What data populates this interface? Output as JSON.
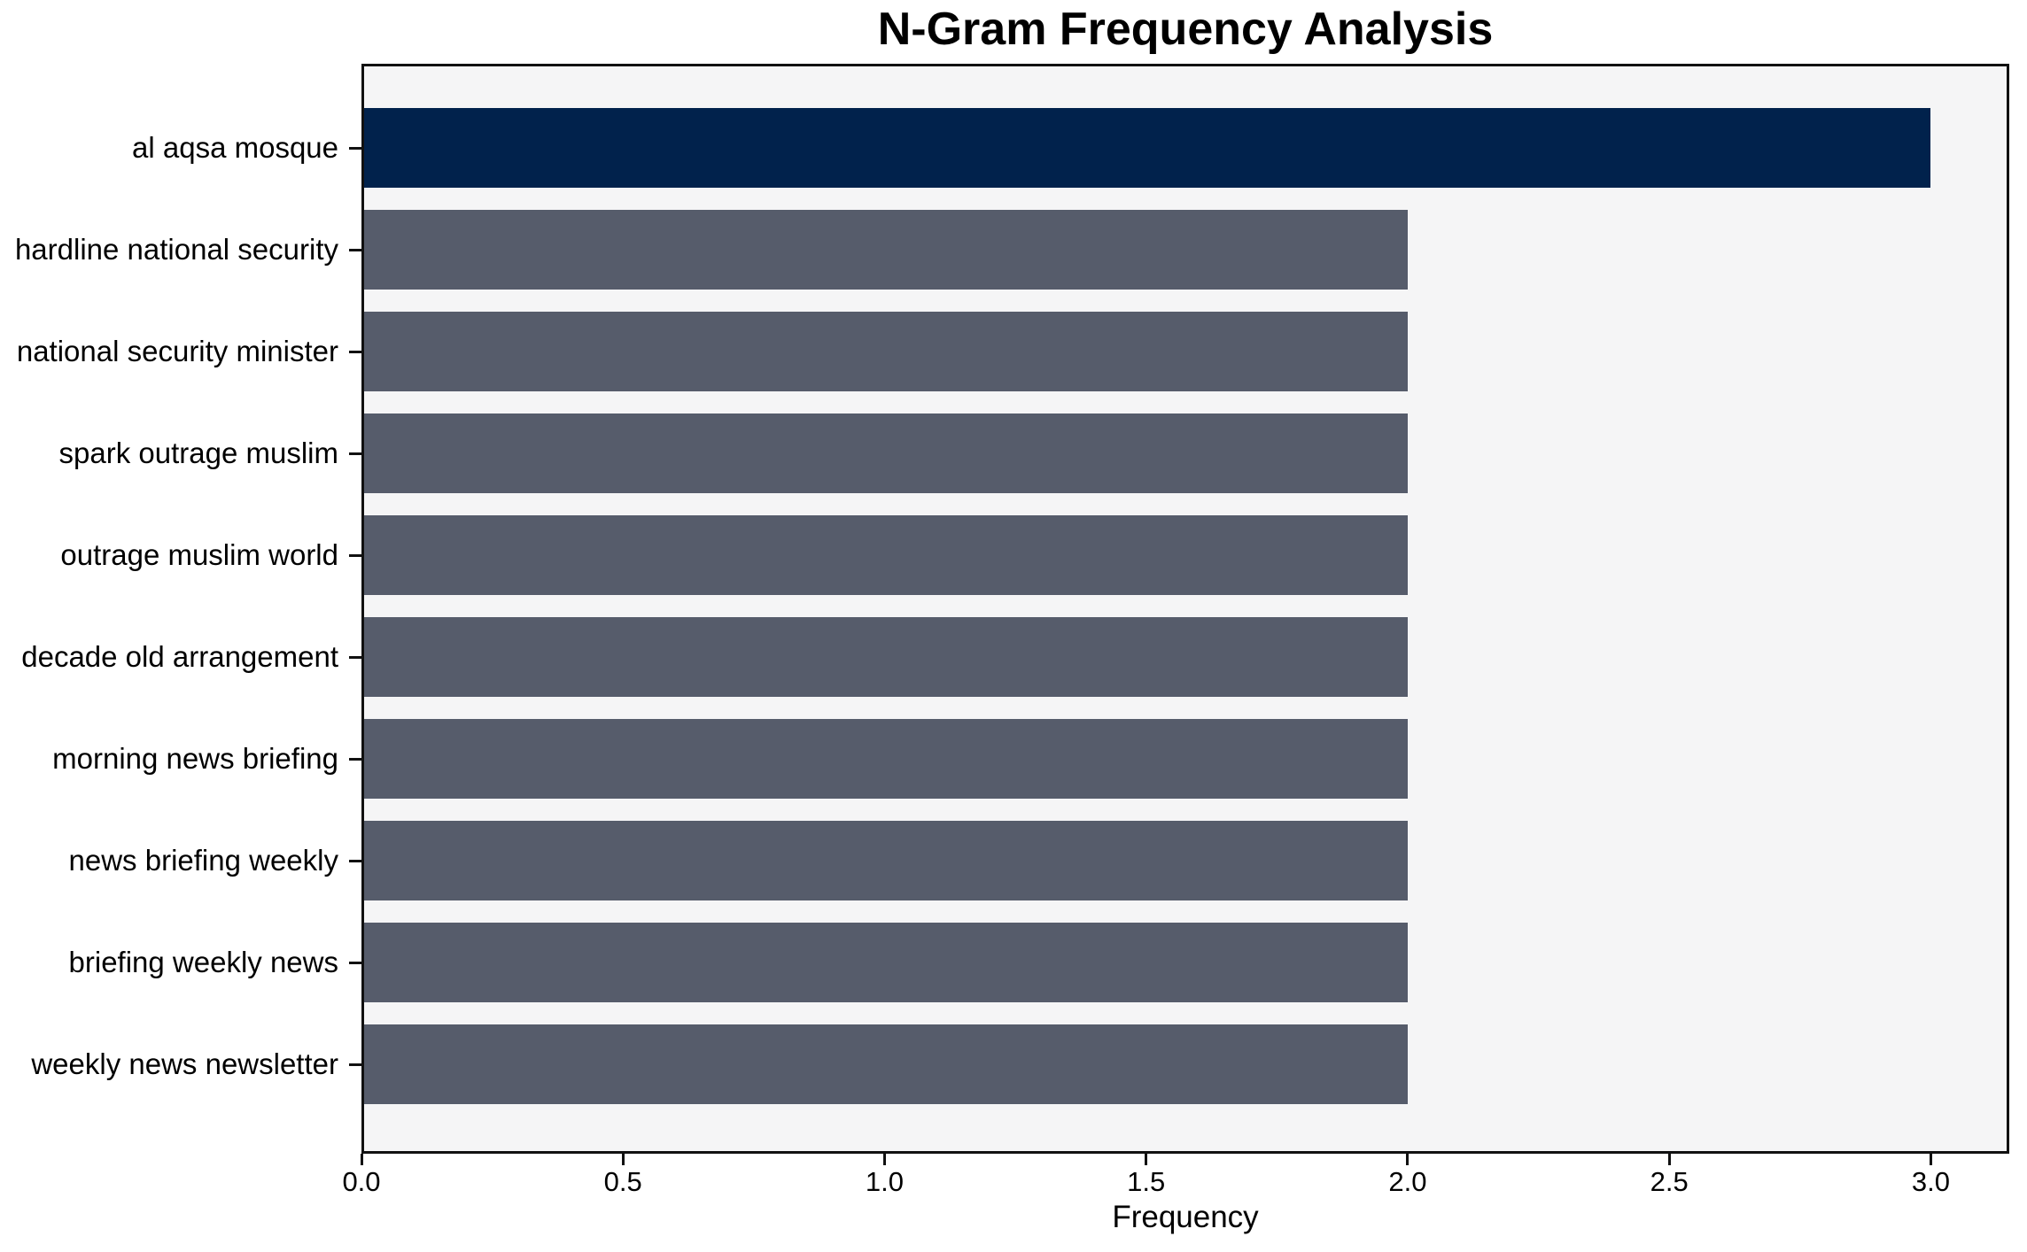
{
  "chart_data": {
    "type": "bar",
    "orientation": "horizontal",
    "title": "N-Gram Frequency Analysis",
    "xlabel": "Frequency",
    "ylabel": "",
    "categories": [
      "al aqsa mosque",
      "hardline national security",
      "national security minister",
      "spark outrage muslim",
      "outrage muslim world",
      "decade old arrangement",
      "morning news briefing",
      "news briefing weekly",
      "briefing weekly news",
      "weekly news newsletter"
    ],
    "values": [
      3,
      2,
      2,
      2,
      2,
      2,
      2,
      2,
      2,
      2
    ],
    "x_tick_values": [
      0.0,
      0.5,
      1.0,
      1.5,
      2.0,
      2.5,
      3.0
    ],
    "x_tick_labels": [
      "0.0",
      "0.5",
      "1.0",
      "1.5",
      "2.0",
      "2.5",
      "3.0"
    ],
    "xlim": [
      0,
      3.15
    ],
    "grid": false,
    "legend": "none",
    "colors": {
      "highlight_bar": "#01224c",
      "default_bar": "#565c6b",
      "plot_background": "#f5f5f6",
      "figure_background": "#ffffff",
      "axis": "#111111",
      "text": "#000000"
    }
  }
}
